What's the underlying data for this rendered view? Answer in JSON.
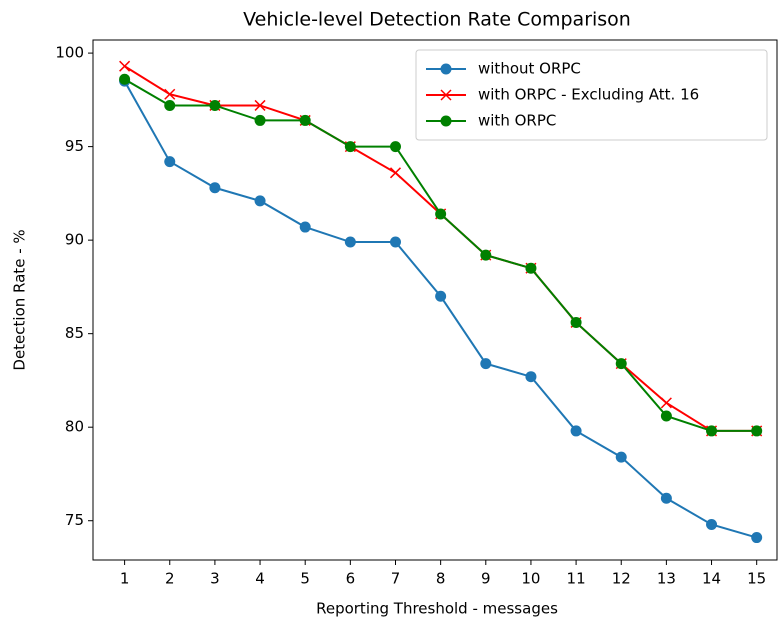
{
  "chart_data": {
    "type": "line",
    "title": "Vehicle-level Detection Rate Comparison",
    "x_label": "Reporting Threshold - messages",
    "y_label": "Detection Rate - %",
    "x": [
      1,
      2,
      3,
      4,
      5,
      6,
      7,
      8,
      9,
      10,
      11,
      12,
      13,
      14,
      15
    ],
    "series": [
      {
        "name": "without ORPC",
        "color": "#1f77b4",
        "marker": "circle",
        "values": [
          98.5,
          94.2,
          92.8,
          92.1,
          90.7,
          89.9,
          89.9,
          87.0,
          83.4,
          82.7,
          79.8,
          78.4,
          76.2,
          74.8,
          74.1
        ]
      },
      {
        "name": "with ORPC - Excluding Att. 16",
        "color": "#ff0000",
        "marker": "x",
        "values": [
          99.3,
          97.8,
          97.2,
          97.2,
          96.4,
          95.0,
          93.6,
          91.4,
          89.2,
          88.5,
          85.6,
          83.4,
          81.3,
          79.8,
          79.8
        ]
      },
      {
        "name": "with ORPC",
        "color": "#008000",
        "marker": "circle",
        "values": [
          98.6,
          97.2,
          97.2,
          96.4,
          96.4,
          95.0,
          95.0,
          91.4,
          89.2,
          88.5,
          85.6,
          83.4,
          80.6,
          79.8,
          79.8
        ]
      }
    ],
    "xlim": [
      0.3,
      15.45
    ],
    "ylim": [
      72.9,
      100.7
    ],
    "xticks": [
      1,
      2,
      3,
      4,
      5,
      6,
      7,
      8,
      9,
      10,
      11,
      12,
      13,
      14,
      15
    ],
    "yticks": [
      75,
      80,
      85,
      90,
      95,
      100
    ],
    "legend": "upper right",
    "grid": false
  }
}
